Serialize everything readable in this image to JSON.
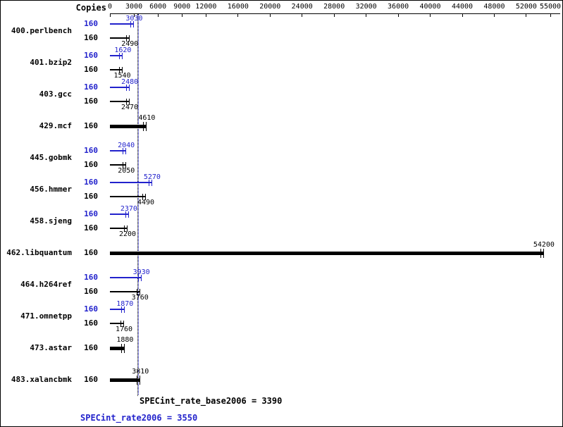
{
  "chart_data": {
    "type": "bar",
    "orientation": "horizontal",
    "title": "",
    "copies_label": "Copies",
    "xlim": [
      0,
      55000
    ],
    "xticks": [
      0,
      3000,
      6000,
      9000,
      12000,
      16000,
      20000,
      24000,
      28000,
      32000,
      36000,
      40000,
      44000,
      48000,
      52000,
      55000
    ],
    "series_colors": {
      "peak": "#2222cc",
      "base": "#000000"
    },
    "benchmarks": [
      {
        "name": "400.perlbench",
        "rows": [
          {
            "series": "peak",
            "copies": 160,
            "value": 3030
          },
          {
            "series": "base",
            "copies": 160,
            "value": 2490
          }
        ]
      },
      {
        "name": "401.bzip2",
        "rows": [
          {
            "series": "peak",
            "copies": 160,
            "value": 1620
          },
          {
            "series": "base",
            "copies": 160,
            "value": 1540
          }
        ]
      },
      {
        "name": "403.gcc",
        "rows": [
          {
            "series": "peak",
            "copies": 160,
            "value": 2480
          },
          {
            "series": "base",
            "copies": 160,
            "value": 2470
          }
        ]
      },
      {
        "name": "429.mcf",
        "rows": [
          {
            "series": "basepeak",
            "copies": 160,
            "value": 4610
          }
        ]
      },
      {
        "name": "445.gobmk",
        "rows": [
          {
            "series": "peak",
            "copies": 160,
            "value": 2040
          },
          {
            "series": "base",
            "copies": 160,
            "value": 2050
          }
        ]
      },
      {
        "name": "456.hmmer",
        "rows": [
          {
            "series": "peak",
            "copies": 160,
            "value": 5270
          },
          {
            "series": "base",
            "copies": 160,
            "value": 4490
          }
        ]
      },
      {
        "name": "458.sjeng",
        "rows": [
          {
            "series": "peak",
            "copies": 160,
            "value": 2370
          },
          {
            "series": "base",
            "copies": 160,
            "value": 2200
          }
        ]
      },
      {
        "name": "462.libquantum",
        "rows": [
          {
            "series": "basepeak",
            "copies": 160,
            "value": 54200
          }
        ]
      },
      {
        "name": "464.h264ref",
        "rows": [
          {
            "series": "peak",
            "copies": 160,
            "value": 3930
          },
          {
            "series": "base",
            "copies": 160,
            "value": 3760
          }
        ]
      },
      {
        "name": "471.omnetpp",
        "rows": [
          {
            "series": "peak",
            "copies": 160,
            "value": 1870
          },
          {
            "series": "base",
            "copies": 160,
            "value": 1760
          }
        ]
      },
      {
        "name": "473.astar",
        "rows": [
          {
            "series": "basepeak",
            "copies": 160,
            "value": 1880
          }
        ]
      },
      {
        "name": "483.xalancbmk",
        "rows": [
          {
            "series": "basepeak",
            "copies": 160,
            "value": 3810
          }
        ]
      }
    ],
    "means": {
      "base_label": "SPECint_rate_base2006 = 3390",
      "base_value": 3390,
      "peak_label": "SPECint_rate2006 = 3550",
      "peak_value": 3550
    }
  }
}
